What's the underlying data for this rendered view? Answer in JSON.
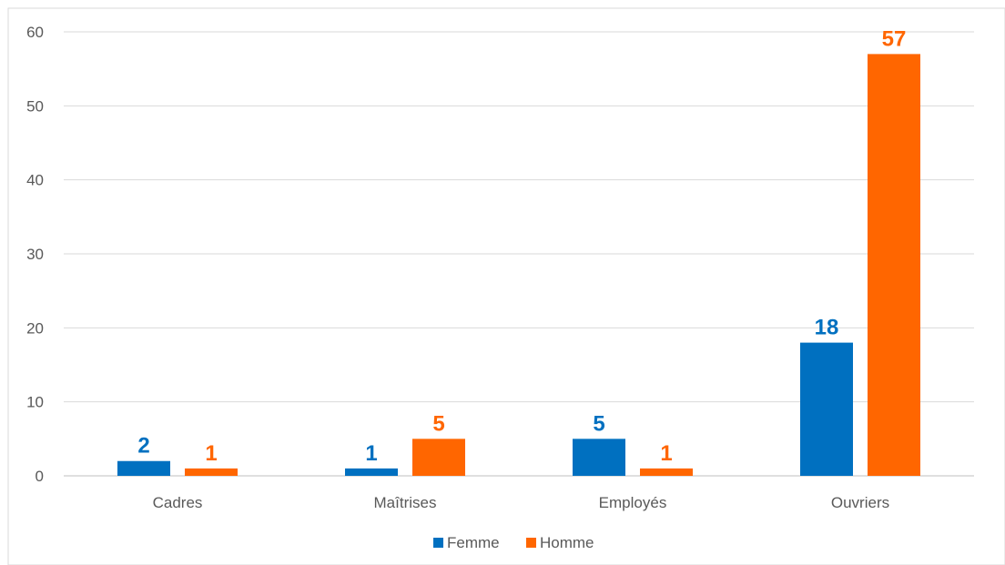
{
  "chart_data": {
    "type": "bar",
    "title": "",
    "xlabel": "",
    "ylabel": "",
    "categories": [
      "Cadres",
      "Maîtrises",
      "Employés",
      "Ouvriers"
    ],
    "series": [
      {
        "name": "Femme",
        "values": [
          2,
          1,
          5,
          18
        ],
        "color": "#0070C0"
      },
      {
        "name": "Homme",
        "values": [
          1,
          5,
          1,
          57
        ],
        "color": "#FF6600"
      }
    ],
    "ylim": [
      0,
      60
    ],
    "yticks": [
      0,
      10,
      20,
      30,
      40,
      50,
      60
    ],
    "grid": true,
    "legend_position": "bottom",
    "data_labels": true
  }
}
